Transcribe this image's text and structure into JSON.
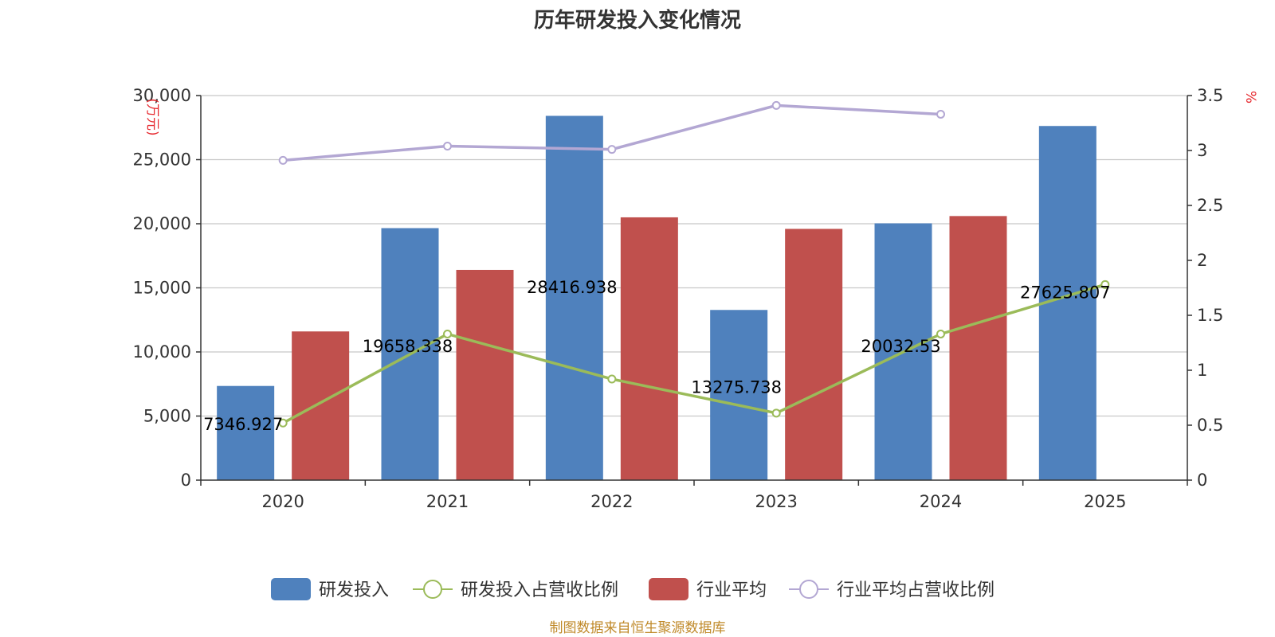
{
  "chart_data": {
    "type": "bar",
    "title": "历年研发投入变化情况",
    "categories": [
      "2020",
      "2021",
      "2022",
      "2023",
      "2024",
      "2025"
    ],
    "y_left": {
      "unit_label": "万元",
      "ylim": [
        0,
        30000
      ],
      "ticks": [
        0,
        5000,
        10000,
        15000,
        20000,
        25000,
        30000
      ],
      "tick_labels": [
        "0",
        "5,000",
        "10,000",
        "15,000",
        "20,000",
        "25,000",
        "30,000"
      ]
    },
    "y_right": {
      "unit_label": "%",
      "ylim": [
        0,
        3.5
      ],
      "ticks": [
        0,
        0.5,
        1,
        1.5,
        2,
        2.5,
        3,
        3.5
      ],
      "tick_labels": [
        "0",
        "0.5",
        "1",
        "1.5",
        "2",
        "2.5",
        "3",
        "3.5"
      ]
    },
    "grid": true,
    "legend_position": "bottom",
    "series": [
      {
        "name": "研发投入",
        "kind": "bar",
        "axis": "left",
        "color": "#4f81bd",
        "values": [
          7346.927,
          19658.338,
          28416.938,
          13275.738,
          20032.53,
          27625.807
        ],
        "data_labels": [
          "7346.927",
          "19658.338",
          "28416.938",
          "13275.738",
          "20032.53",
          "27625.807"
        ]
      },
      {
        "name": "研发投入占营收比例",
        "kind": "line",
        "axis": "right",
        "color": "#9bbb59",
        "values": [
          0.52,
          1.33,
          0.92,
          0.61,
          1.33,
          1.78
        ]
      },
      {
        "name": "行业平均",
        "kind": "bar",
        "axis": "left",
        "color": "#c0504d",
        "values": [
          11600,
          16400,
          20500,
          19600,
          20600,
          null
        ]
      },
      {
        "name": "行业平均占营收比例",
        "kind": "line",
        "axis": "right",
        "color": "#b3a7d3",
        "values": [
          2.91,
          3.04,
          3.01,
          3.41,
          3.33,
          null
        ]
      }
    ],
    "source": "制图数据来自恒生聚源数据库"
  }
}
